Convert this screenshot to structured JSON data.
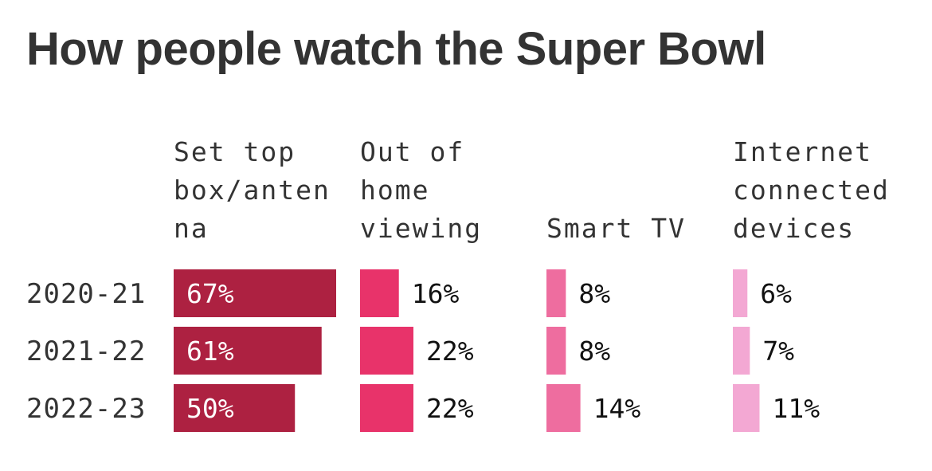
{
  "chart_data": {
    "type": "bar",
    "title": "How people watch the Super Bowl",
    "categories": [
      "2020-21",
      "2021-22",
      "2022-23"
    ],
    "series": [
      {
        "name": "Set top box/antenna",
        "header_lines": [
          "Set top",
          "box/anten",
          "na"
        ],
        "values": [
          67,
          61,
          50
        ],
        "labels": [
          "67%",
          "61%",
          "50%"
        ],
        "color": "#ad2141",
        "label_inside": true
      },
      {
        "name": "Out of home viewing",
        "header_lines": [
          "Out of",
          "home",
          "viewing"
        ],
        "values": [
          16,
          22,
          22
        ],
        "labels": [
          "16%",
          "22%",
          "22%"
        ],
        "color": "#e8336a",
        "label_inside": false
      },
      {
        "name": "Smart TV",
        "header_lines": [
          "Smart TV"
        ],
        "values": [
          8,
          8,
          14
        ],
        "labels": [
          "8%",
          "8%",
          "14%"
        ],
        "color": "#ee6d9f",
        "label_inside": false
      },
      {
        "name": "Internet connected devices",
        "header_lines": [
          "Internet",
          "connected",
          "devices"
        ],
        "values": [
          6,
          7,
          11
        ],
        "labels": [
          "6%",
          "7%",
          "11%"
        ],
        "color": "#f3a8d3",
        "label_inside": false
      }
    ],
    "colors": {
      "title": "#333333",
      "text": "#333333",
      "inside_label": "#ffffff",
      "outside_label": "#111111"
    }
  }
}
